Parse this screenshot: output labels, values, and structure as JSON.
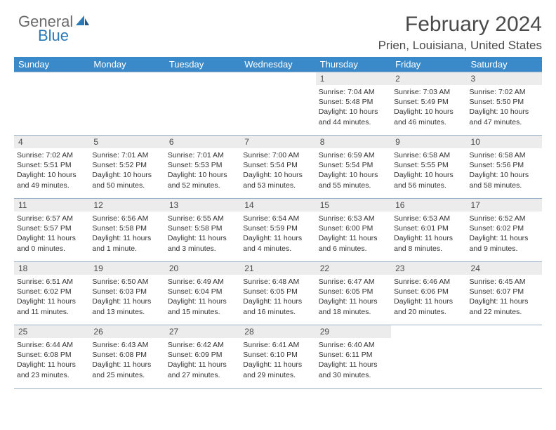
{
  "logo": {
    "text1": "General",
    "text2": "Blue"
  },
  "header": {
    "month_title": "February 2024",
    "location": "Prien, Louisiana, United States"
  },
  "weekdays": [
    "Sunday",
    "Monday",
    "Tuesday",
    "Wednesday",
    "Thursday",
    "Friday",
    "Saturday"
  ],
  "colors": {
    "header_bar": "#3a8ac9",
    "logo_gray": "#6a6a6a",
    "logo_blue": "#2a7ab8",
    "daynum_bg": "#ececec",
    "cell_border": "#9bb4c9",
    "title_text": "#4a4a4a"
  },
  "weeks": [
    [
      null,
      null,
      null,
      null,
      {
        "n": "1",
        "sr": "Sunrise: 7:04 AM",
        "ss": "Sunset: 5:48 PM",
        "d1": "Daylight: 10 hours",
        "d2": "and 44 minutes."
      },
      {
        "n": "2",
        "sr": "Sunrise: 7:03 AM",
        "ss": "Sunset: 5:49 PM",
        "d1": "Daylight: 10 hours",
        "d2": "and 46 minutes."
      },
      {
        "n": "3",
        "sr": "Sunrise: 7:02 AM",
        "ss": "Sunset: 5:50 PM",
        "d1": "Daylight: 10 hours",
        "d2": "and 47 minutes."
      }
    ],
    [
      {
        "n": "4",
        "sr": "Sunrise: 7:02 AM",
        "ss": "Sunset: 5:51 PM",
        "d1": "Daylight: 10 hours",
        "d2": "and 49 minutes."
      },
      {
        "n": "5",
        "sr": "Sunrise: 7:01 AM",
        "ss": "Sunset: 5:52 PM",
        "d1": "Daylight: 10 hours",
        "d2": "and 50 minutes."
      },
      {
        "n": "6",
        "sr": "Sunrise: 7:01 AM",
        "ss": "Sunset: 5:53 PM",
        "d1": "Daylight: 10 hours",
        "d2": "and 52 minutes."
      },
      {
        "n": "7",
        "sr": "Sunrise: 7:00 AM",
        "ss": "Sunset: 5:54 PM",
        "d1": "Daylight: 10 hours",
        "d2": "and 53 minutes."
      },
      {
        "n": "8",
        "sr": "Sunrise: 6:59 AM",
        "ss": "Sunset: 5:54 PM",
        "d1": "Daylight: 10 hours",
        "d2": "and 55 minutes."
      },
      {
        "n": "9",
        "sr": "Sunrise: 6:58 AM",
        "ss": "Sunset: 5:55 PM",
        "d1": "Daylight: 10 hours",
        "d2": "and 56 minutes."
      },
      {
        "n": "10",
        "sr": "Sunrise: 6:58 AM",
        "ss": "Sunset: 5:56 PM",
        "d1": "Daylight: 10 hours",
        "d2": "and 58 minutes."
      }
    ],
    [
      {
        "n": "11",
        "sr": "Sunrise: 6:57 AM",
        "ss": "Sunset: 5:57 PM",
        "d1": "Daylight: 11 hours",
        "d2": "and 0 minutes."
      },
      {
        "n": "12",
        "sr": "Sunrise: 6:56 AM",
        "ss": "Sunset: 5:58 PM",
        "d1": "Daylight: 11 hours",
        "d2": "and 1 minute."
      },
      {
        "n": "13",
        "sr": "Sunrise: 6:55 AM",
        "ss": "Sunset: 5:58 PM",
        "d1": "Daylight: 11 hours",
        "d2": "and 3 minutes."
      },
      {
        "n": "14",
        "sr": "Sunrise: 6:54 AM",
        "ss": "Sunset: 5:59 PM",
        "d1": "Daylight: 11 hours",
        "d2": "and 4 minutes."
      },
      {
        "n": "15",
        "sr": "Sunrise: 6:53 AM",
        "ss": "Sunset: 6:00 PM",
        "d1": "Daylight: 11 hours",
        "d2": "and 6 minutes."
      },
      {
        "n": "16",
        "sr": "Sunrise: 6:53 AM",
        "ss": "Sunset: 6:01 PM",
        "d1": "Daylight: 11 hours",
        "d2": "and 8 minutes."
      },
      {
        "n": "17",
        "sr": "Sunrise: 6:52 AM",
        "ss": "Sunset: 6:02 PM",
        "d1": "Daylight: 11 hours",
        "d2": "and 9 minutes."
      }
    ],
    [
      {
        "n": "18",
        "sr": "Sunrise: 6:51 AM",
        "ss": "Sunset: 6:02 PM",
        "d1": "Daylight: 11 hours",
        "d2": "and 11 minutes."
      },
      {
        "n": "19",
        "sr": "Sunrise: 6:50 AM",
        "ss": "Sunset: 6:03 PM",
        "d1": "Daylight: 11 hours",
        "d2": "and 13 minutes."
      },
      {
        "n": "20",
        "sr": "Sunrise: 6:49 AM",
        "ss": "Sunset: 6:04 PM",
        "d1": "Daylight: 11 hours",
        "d2": "and 15 minutes."
      },
      {
        "n": "21",
        "sr": "Sunrise: 6:48 AM",
        "ss": "Sunset: 6:05 PM",
        "d1": "Daylight: 11 hours",
        "d2": "and 16 minutes."
      },
      {
        "n": "22",
        "sr": "Sunrise: 6:47 AM",
        "ss": "Sunset: 6:05 PM",
        "d1": "Daylight: 11 hours",
        "d2": "and 18 minutes."
      },
      {
        "n": "23",
        "sr": "Sunrise: 6:46 AM",
        "ss": "Sunset: 6:06 PM",
        "d1": "Daylight: 11 hours",
        "d2": "and 20 minutes."
      },
      {
        "n": "24",
        "sr": "Sunrise: 6:45 AM",
        "ss": "Sunset: 6:07 PM",
        "d1": "Daylight: 11 hours",
        "d2": "and 22 minutes."
      }
    ],
    [
      {
        "n": "25",
        "sr": "Sunrise: 6:44 AM",
        "ss": "Sunset: 6:08 PM",
        "d1": "Daylight: 11 hours",
        "d2": "and 23 minutes."
      },
      {
        "n": "26",
        "sr": "Sunrise: 6:43 AM",
        "ss": "Sunset: 6:08 PM",
        "d1": "Daylight: 11 hours",
        "d2": "and 25 minutes."
      },
      {
        "n": "27",
        "sr": "Sunrise: 6:42 AM",
        "ss": "Sunset: 6:09 PM",
        "d1": "Daylight: 11 hours",
        "d2": "and 27 minutes."
      },
      {
        "n": "28",
        "sr": "Sunrise: 6:41 AM",
        "ss": "Sunset: 6:10 PM",
        "d1": "Daylight: 11 hours",
        "d2": "and 29 minutes."
      },
      {
        "n": "29",
        "sr": "Sunrise: 6:40 AM",
        "ss": "Sunset: 6:11 PM",
        "d1": "Daylight: 11 hours",
        "d2": "and 30 minutes."
      },
      null,
      null
    ]
  ]
}
